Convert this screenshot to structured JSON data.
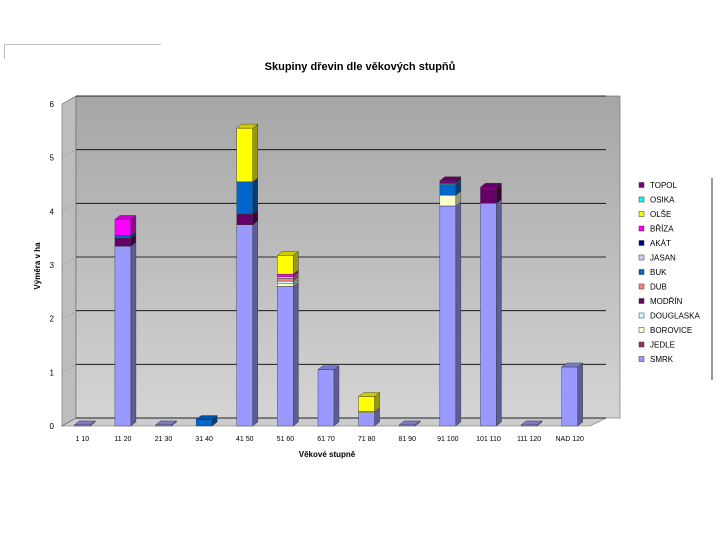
{
  "chart_data": {
    "type": "bar",
    "stacked": true,
    "three_d": true,
    "title": "Skupiny dřevin dle věkových stupňů",
    "xlabel": "Věkové stupně",
    "ylabel": "Výměra v ha",
    "ylim": [
      0,
      6
    ],
    "yticks": [
      "0",
      "1",
      "2",
      "3",
      "4",
      "5",
      "6"
    ],
    "grid": true,
    "legend_position": "right",
    "categories": [
      "1 10",
      "11 20",
      "21 30",
      "31 40",
      "41 50",
      "51 60",
      "61 70",
      "71 80",
      "81 90",
      "91 100",
      "101 110",
      "111 120",
      "NAD 120"
    ],
    "series": [
      {
        "name": "SMRK",
        "color": "#9999ff",
        "values": [
          0.02,
          3.35,
          0.02,
          0,
          3.75,
          2.6,
          1.05,
          0.25,
          0.02,
          4.1,
          4.15,
          0.02,
          1.1
        ]
      },
      {
        "name": "JEDLE",
        "color": "#993366",
        "values": [
          0,
          0,
          0,
          0,
          0,
          0,
          0,
          0,
          0,
          0,
          0,
          0,
          0
        ]
      },
      {
        "name": "BOROVICE",
        "color": "#ffffcc",
        "values": [
          0,
          0,
          0,
          0,
          0,
          0.05,
          0,
          0.02,
          0,
          0.2,
          0,
          0,
          0
        ]
      },
      {
        "name": "DOUGLASKA",
        "color": "#ccffff",
        "values": [
          0,
          0,
          0,
          0,
          0,
          0.05,
          0,
          0,
          0,
          0,
          0,
          0,
          0
        ]
      },
      {
        "name": "MODŘÍN",
        "color": "#660066",
        "values": [
          0,
          0.15,
          0,
          0,
          0.2,
          0,
          0,
          0,
          0,
          0,
          0.25,
          0,
          0
        ]
      },
      {
        "name": "DUB",
        "color": "#ff8080",
        "values": [
          0,
          0,
          0,
          0,
          0,
          0.05,
          0,
          0,
          0,
          0,
          0,
          0,
          0
        ]
      },
      {
        "name": "BUK",
        "color": "#0066cc",
        "values": [
          0,
          0.05,
          0,
          0.12,
          0.6,
          0,
          0,
          0,
          0,
          0.2,
          0,
          0,
          0
        ]
      },
      {
        "name": "JASAN",
        "color": "#ccccff",
        "values": [
          0,
          0,
          0,
          0,
          0,
          0.03,
          0,
          0,
          0,
          0,
          0,
          0,
          0
        ]
      },
      {
        "name": "AKÁT",
        "color": "#000080",
        "values": [
          0,
          0,
          0,
          0,
          0,
          0,
          0,
          0,
          0,
          0,
          0,
          0,
          0
        ]
      },
      {
        "name": "BŘÍZA",
        "color": "#ff00ff",
        "values": [
          0,
          0.3,
          0,
          0,
          0,
          0.05,
          0,
          0,
          0,
          0,
          0,
          0,
          0
        ]
      },
      {
        "name": "OLŠE",
        "color": "#ffff00",
        "values": [
          0,
          0,
          0,
          0,
          1.0,
          0.35,
          0,
          0.28,
          0,
          0,
          0,
          0,
          0
        ]
      },
      {
        "name": "OSIKA",
        "color": "#00ffff",
        "values": [
          0,
          0,
          0,
          0,
          0,
          0,
          0,
          0,
          0,
          0.02,
          0,
          0,
          0
        ]
      },
      {
        "name": "TOPOL",
        "color": "#800080",
        "values": [
          0,
          0,
          0,
          0,
          0,
          0,
          0,
          0,
          0,
          0.05,
          0.05,
          0,
          0
        ]
      }
    ]
  }
}
